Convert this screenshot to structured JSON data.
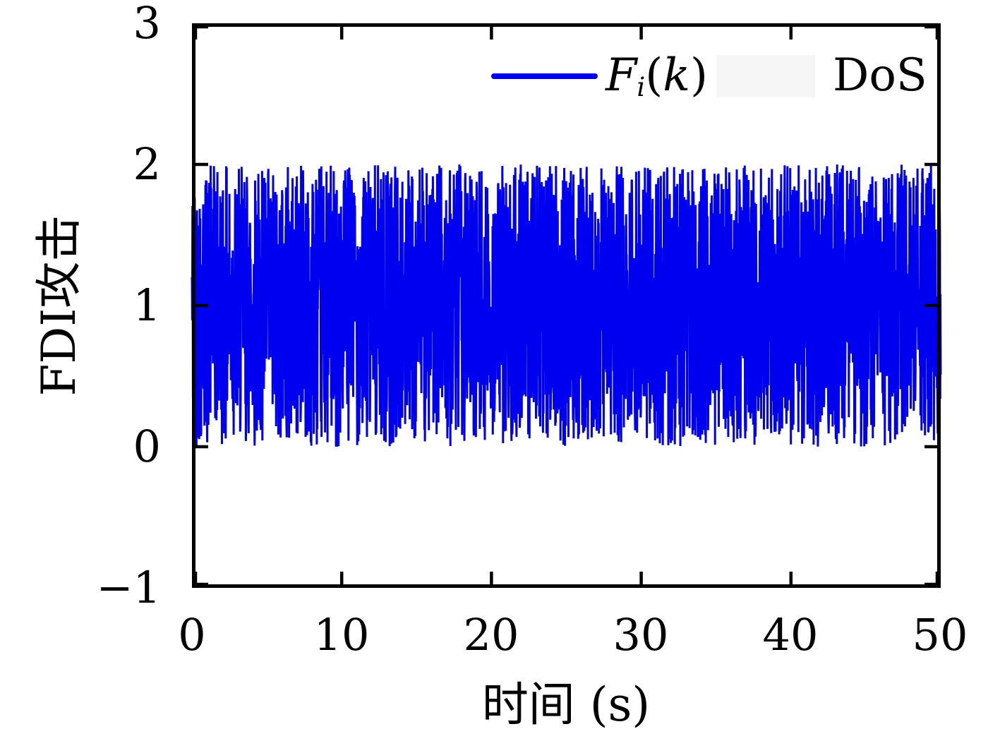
{
  "chart_data": {
    "type": "line",
    "title": "",
    "xlabel": "时间 (s)",
    "ylabel": "FDI攻击",
    "xlim": [
      0,
      50
    ],
    "ylim": [
      -1,
      3
    ],
    "x_ticks": [
      0,
      10,
      20,
      30,
      40,
      50
    ],
    "x_tick_labels": [
      "0",
      "10",
      "20",
      "30",
      "40",
      "50"
    ],
    "y_ticks": [
      3,
      2,
      1,
      0,
      -1
    ],
    "y_tick_labels": [
      "3",
      "2",
      "1",
      "0",
      "−1"
    ],
    "grid": false,
    "box": true,
    "tick_direction": "in",
    "tick_length": 18,
    "axis_line_width": 5,
    "background": "#ffffff",
    "axis_color": "#000000",
    "legend": {
      "position": "upper-right",
      "frame": false,
      "entries": [
        {
          "label": "Fi(k)",
          "marker": "line",
          "color": "#0000f0"
        },
        {
          "label": "DoS",
          "marker": "patch",
          "color": "#f6f6f6"
        }
      ]
    },
    "series": [
      {
        "name": "Fi(k)",
        "kind": "uniform-noise-line",
        "color": "#0000f0",
        "line_width": 3,
        "x_range": [
          0,
          50
        ],
        "y_range": [
          0,
          2
        ],
        "n_points": 3000,
        "seed": 42,
        "description": "Dense uniform random FDI attack signal occupying the band between 0 and 2 across the whole 0–50 s span; ragged top envelope near 2 and ragged bottom envelope near 0"
      }
    ]
  },
  "legend_text": {
    "f_main": "F",
    "f_sub": "i",
    "f_open": "(",
    "f_k": "k",
    "f_close": ")",
    "dos": "DoS"
  }
}
